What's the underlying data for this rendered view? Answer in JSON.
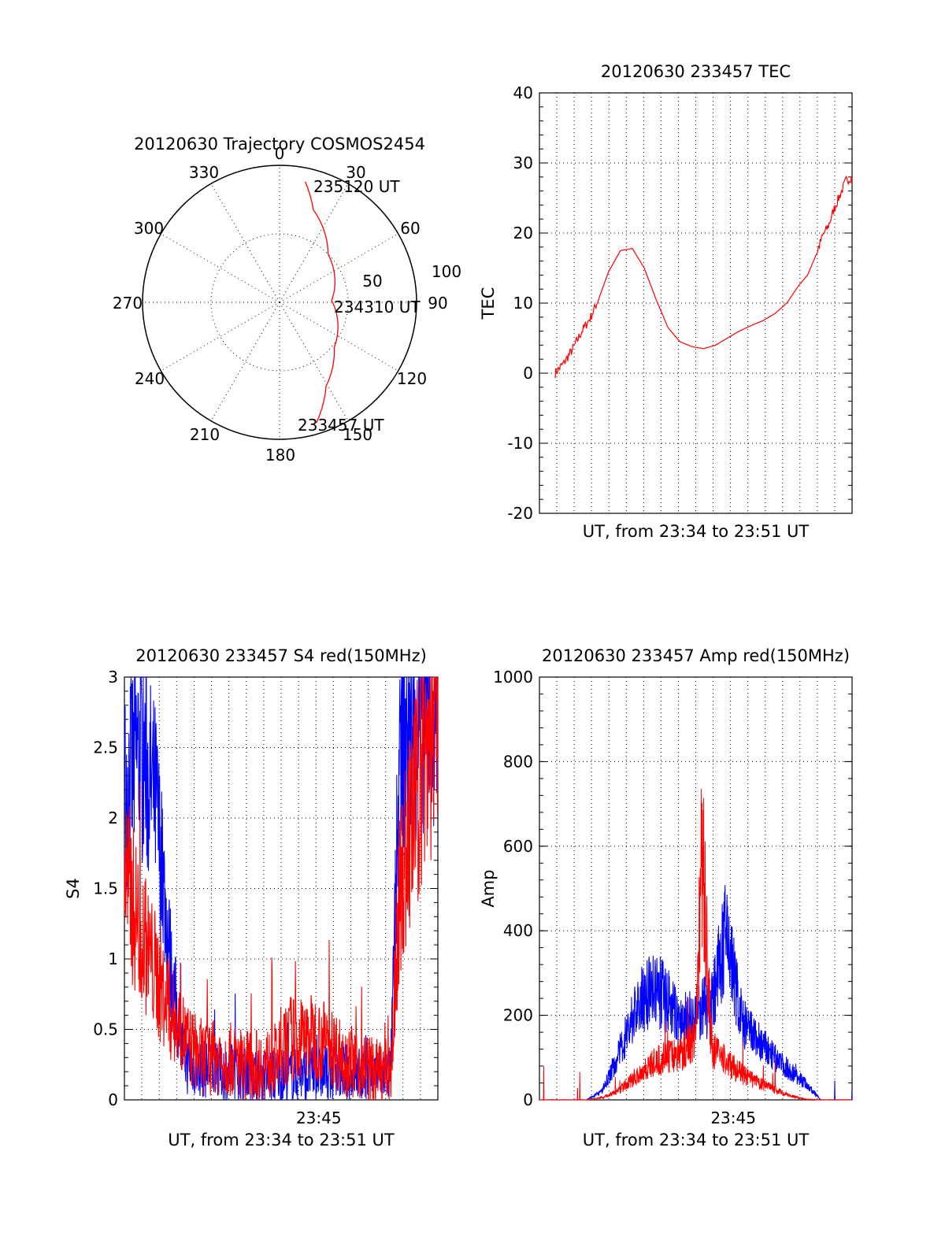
{
  "chart_data": [
    {
      "type": "polar",
      "title": "20120630 Trajectory COSMOS2454",
      "angle_labels": [
        "0",
        "30",
        "60",
        "90",
        "120",
        "150",
        "180",
        "210",
        "240",
        "270",
        "300",
        "330"
      ],
      "radius_labels": [
        "50",
        "100"
      ],
      "rlim": [
        0,
        100
      ],
      "grid": true,
      "series": [
        {
          "color": "#ff0000",
          "points": [
            {
              "az": 12,
              "dist": 90
            },
            {
              "az": 20,
              "dist": 72
            },
            {
              "az": 45,
              "dist": 50
            },
            {
              "az": 88,
              "dist": 38
            },
            {
              "az": 130,
              "dist": 52
            },
            {
              "az": 151,
              "dist": 70
            },
            {
              "az": 163,
              "dist": 92
            }
          ]
        }
      ],
      "annotations": [
        {
          "text": "235120 UT",
          "az": 14,
          "dist": 100
        },
        {
          "text": "234310 UT",
          "az": 96,
          "dist": 45
        },
        {
          "text": "233457 UT",
          "az": 160,
          "dist": 102
        }
      ]
    },
    {
      "type": "line",
      "title": "20120630 233457 TEC",
      "xlabel": "UT, from 23:34 to 23:51 UT",
      "ylabel": "TEC",
      "xlim": [
        0,
        1
      ],
      "ylim": [
        -20,
        40
      ],
      "yticks": [
        "-20",
        "-10",
        "0",
        "10",
        "20",
        "30",
        "40"
      ],
      "grid": true,
      "series": [
        {
          "color": "#ff0000",
          "x": [
            0.0,
            0.03,
            0.06,
            0.09,
            0.12,
            0.15,
            0.18,
            0.22,
            0.26,
            0.3,
            0.34,
            0.38,
            0.42,
            0.46,
            0.5,
            0.54,
            0.58,
            0.62,
            0.66,
            0.7,
            0.74,
            0.78,
            0.82,
            0.85,
            0.88,
            0.9,
            0.92,
            0.94,
            0.96,
            0.98,
            1.0
          ],
          "y": [
            0.0,
            1.5,
            3.5,
            6.0,
            8.0,
            11.0,
            14.5,
            17.5,
            17.8,
            15.0,
            10.5,
            6.5,
            4.5,
            3.8,
            3.5,
            4.0,
            5.0,
            6.0,
            6.8,
            7.5,
            8.5,
            10.0,
            12.5,
            14.0,
            17.0,
            19.5,
            21.0,
            23.5,
            25.5,
            27.5,
            28.0
          ]
        }
      ]
    },
    {
      "type": "line",
      "title": "20120630 233457 S4 red(150MHz)",
      "xlabel": "UT, from 23:34 to 23:51 UT",
      "ylabel": "S4",
      "xtick_label": "23:45",
      "ylim": [
        0,
        3
      ],
      "yticks": [
        "0",
        "0.5",
        "1",
        "1.5",
        "2",
        "2.5",
        "3"
      ],
      "grid": true,
      "series": [
        {
          "color": "#ff0000",
          "x": [
            0.0,
            0.05,
            0.1,
            0.15,
            0.18,
            0.2,
            0.25,
            0.3,
            0.35,
            0.4,
            0.45,
            0.5,
            0.53,
            0.55,
            0.6,
            0.65,
            0.7,
            0.75,
            0.8,
            0.85,
            0.88,
            0.92,
            0.96,
            1.0
          ],
          "y": [
            1.6,
            1.2,
            0.9,
            0.6,
            0.5,
            0.4,
            0.3,
            0.3,
            0.28,
            0.25,
            0.25,
            0.3,
            0.45,
            0.4,
            0.45,
            0.4,
            0.3,
            0.25,
            0.2,
            0.2,
            1.5,
            2.0,
            2.5,
            2.8
          ]
        },
        {
          "color": "#0000ff",
          "x": [
            0.0,
            0.05,
            0.1,
            0.15,
            0.18,
            0.2,
            0.25,
            0.3,
            0.35,
            0.4,
            0.45,
            0.5,
            0.55,
            0.6,
            0.65,
            0.7,
            0.75,
            0.8,
            0.85,
            0.88,
            0.92,
            0.96,
            1.0
          ],
          "y": [
            2.2,
            2.5,
            2.1,
            0.9,
            0.4,
            0.25,
            0.22,
            0.2,
            0.2,
            0.18,
            0.17,
            0.17,
            0.17,
            0.18,
            0.2,
            0.2,
            0.18,
            0.17,
            0.2,
            2.5,
            2.7,
            2.8,
            2.9
          ]
        }
      ]
    },
    {
      "type": "line",
      "title": "20120630 233457 Amp red(150MHz)",
      "xlabel": "UT, from 23:34 to 23:51 UT",
      "ylabel": "Amp",
      "xtick_label": "23:45",
      "ylim": [
        0,
        1000
      ],
      "yticks": [
        "0",
        "200",
        "400",
        "600",
        "800",
        "1000"
      ],
      "grid": true,
      "series": [
        {
          "color": "#ff0000",
          "x": [
            0.0,
            0.15,
            0.2,
            0.25,
            0.3,
            0.35,
            0.4,
            0.45,
            0.5,
            0.52,
            0.55,
            0.6,
            0.65,
            0.7,
            0.75,
            0.8,
            0.85,
            0.9,
            1.0
          ],
          "y": [
            0,
            0,
            5,
            20,
            50,
            80,
            100,
            110,
            150,
            600,
            120,
            90,
            60,
            40,
            25,
            10,
            2,
            0,
            0
          ]
        },
        {
          "color": "#0000ff",
          "x": [
            0.0,
            0.15,
            0.2,
            0.25,
            0.3,
            0.35,
            0.4,
            0.45,
            0.5,
            0.55,
            0.6,
            0.62,
            0.65,
            0.7,
            0.75,
            0.8,
            0.85,
            0.9,
            1.0
          ],
          "y": [
            0,
            0,
            20,
            100,
            200,
            260,
            250,
            180,
            200,
            230,
            400,
            300,
            180,
            140,
            100,
            70,
            40,
            0,
            0
          ]
        }
      ]
    }
  ]
}
